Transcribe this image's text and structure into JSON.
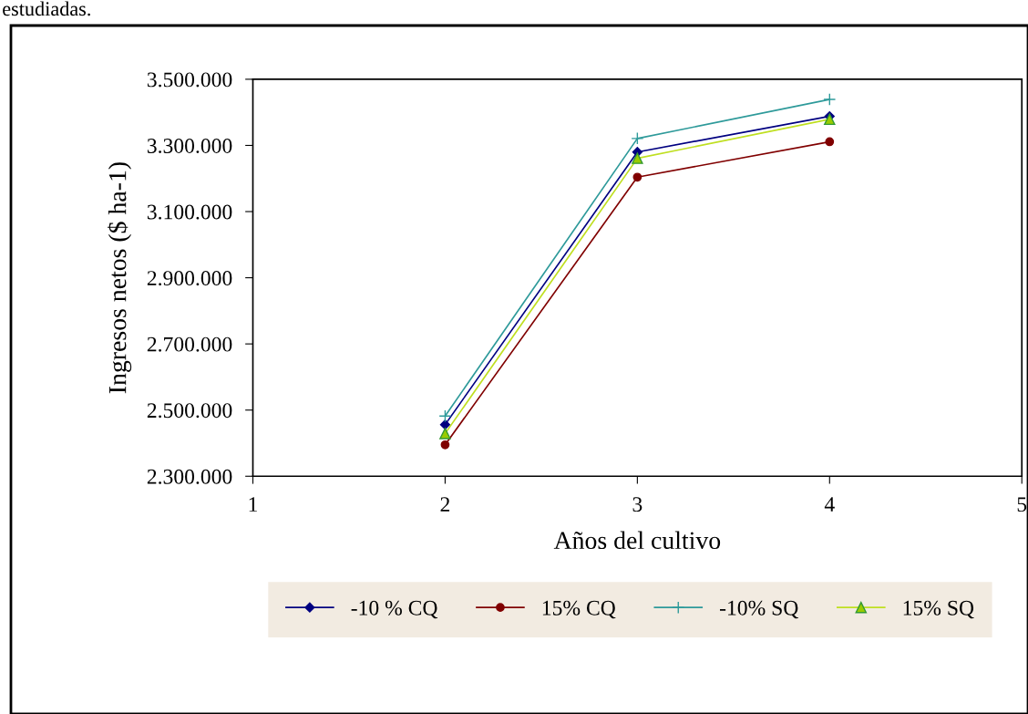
{
  "chart_data": {
    "type": "line",
    "xlabel": "Años del cultivo",
    "ylabel": "Ingresos netos ($ ha-1)",
    "annotations": [
      "estudiadas."
    ],
    "x": [
      2,
      3,
      4
    ],
    "series": [
      {
        "name": "-10 % CQ",
        "color": "#000080",
        "marker": "diamond",
        "values": [
          2456000,
          3280000,
          3388000
        ]
      },
      {
        "name": "15% CQ",
        "color": "#800000",
        "marker": "circle",
        "values": [
          2395000,
          3204000,
          3311000
        ]
      },
      {
        "name": "-10% SQ",
        "color": "#2e9a9a",
        "marker": "cross",
        "values": [
          2482000,
          3321000,
          3439000
        ]
      },
      {
        "name": "15% SQ",
        "color": "#bfdf20",
        "marker": "triangle",
        "values": [
          2429000,
          3261000,
          3379000
        ]
      }
    ],
    "xlim": [
      1,
      5
    ],
    "xticks": [
      1,
      2,
      3,
      4,
      5
    ],
    "ylim": [
      2300000,
      3500000
    ],
    "yticks": [
      {
        "value": 2300000,
        "label": "2.300.000"
      },
      {
        "value": 2500000,
        "label": "2.500.000"
      },
      {
        "value": 2700000,
        "label": "2.700.000"
      },
      {
        "value": 2900000,
        "label": "2.900.000"
      },
      {
        "value": 3100000,
        "label": "3.100.000"
      },
      {
        "value": 3300000,
        "label": "3.300.000"
      },
      {
        "value": 3500000,
        "label": "3.500.000"
      }
    ],
    "grid": false,
    "legend": "bottom",
    "line_style": "solid"
  }
}
